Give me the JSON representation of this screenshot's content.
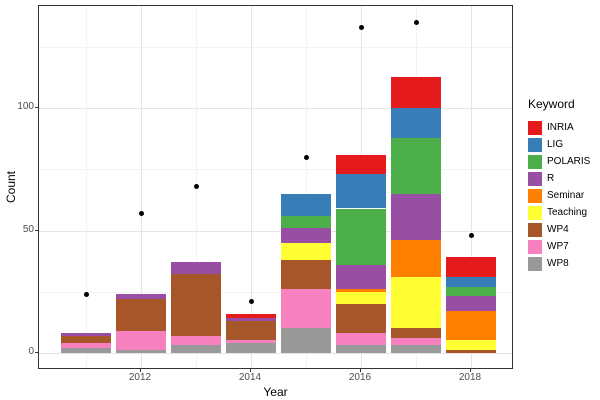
{
  "chart_data": {
    "type": "bar",
    "subtype": "stacked-bars-with-point-overlay",
    "title": "",
    "xlabel": "Year",
    "ylabel": "Count",
    "x": [
      2011,
      2012,
      2013,
      2014,
      2015,
      2016,
      2017,
      2018
    ],
    "x_tick_years": [
      2012,
      2014,
      2016,
      2018
    ],
    "x_tick_labels": [
      "2012",
      "2014",
      "2016",
      "2018"
    ],
    "x_minor_years": [
      2011,
      2013,
      2015,
      2017
    ],
    "y_ticks": [
      0,
      50,
      100
    ],
    "y_tick_labels": [
      "0",
      "50",
      "100"
    ],
    "y_minor_ticks": [
      25,
      75,
      125
    ],
    "ylim": [
      0,
      142
    ],
    "grid": "on",
    "legend_position": "right",
    "legend": {
      "title": "Keyword",
      "items": [
        {
          "label": "INRIA",
          "color": "#E41A1C"
        },
        {
          "label": "LIG",
          "color": "#377EB8"
        },
        {
          "label": "POLARIS",
          "color": "#4DAF4A"
        },
        {
          "label": "R",
          "color": "#984EA3"
        },
        {
          "label": "Seminar",
          "color": "#FF7F00"
        },
        {
          "label": "Teaching",
          "color": "#FFFF33"
        },
        {
          "label": "WP4",
          "color": "#A65628"
        },
        {
          "label": "WP7",
          "color": "#F781BF"
        },
        {
          "label": "WP8",
          "color": "#999999"
        }
      ]
    },
    "stack_order_bottom_to_top": [
      "WP8",
      "WP7",
      "WP4",
      "Teaching",
      "Seminar",
      "R",
      "POLARIS",
      "LIG",
      "INRIA"
    ],
    "series": [
      {
        "name": "INRIA",
        "values": [
          0,
          0,
          0,
          2,
          0,
          8,
          13,
          8
        ]
      },
      {
        "name": "LIG",
        "values": [
          0,
          0,
          0,
          0,
          9,
          14,
          12,
          4
        ]
      },
      {
        "name": "POLARIS",
        "values": [
          0,
          0,
          0,
          0,
          5,
          23,
          23,
          4
        ]
      },
      {
        "name": "R",
        "values": [
          1,
          2,
          5,
          1,
          6,
          10,
          19,
          6
        ]
      },
      {
        "name": "Seminar",
        "values": [
          0,
          0,
          0,
          0,
          0,
          1,
          15,
          12
        ]
      },
      {
        "name": "Teaching",
        "values": [
          0,
          0,
          0,
          0,
          7,
          5,
          21,
          4
        ]
      },
      {
        "name": "WP4",
        "values": [
          3,
          13,
          25,
          8,
          12,
          12,
          4,
          1
        ]
      },
      {
        "name": "WP7",
        "values": [
          2,
          8,
          4,
          1,
          16,
          5,
          3,
          0
        ]
      },
      {
        "name": "WP8",
        "values": [
          2,
          1,
          3,
          4,
          10,
          3,
          3,
          0
        ]
      }
    ],
    "bar_totals": [
      8,
      24,
      37,
      16,
      65,
      81,
      113,
      39
    ],
    "points": {
      "name": "black-dots",
      "values": [
        24,
        57,
        68,
        21,
        80,
        133,
        135,
        48
      ]
    }
  },
  "style": {
    "panel_border": "#333333",
    "grid_major": "#E5E5E5",
    "grid_minor": "#F2F2F2",
    "tick_text": "#4D4D4D",
    "point_color": "#000000",
    "background": "#FFFFFF"
  }
}
